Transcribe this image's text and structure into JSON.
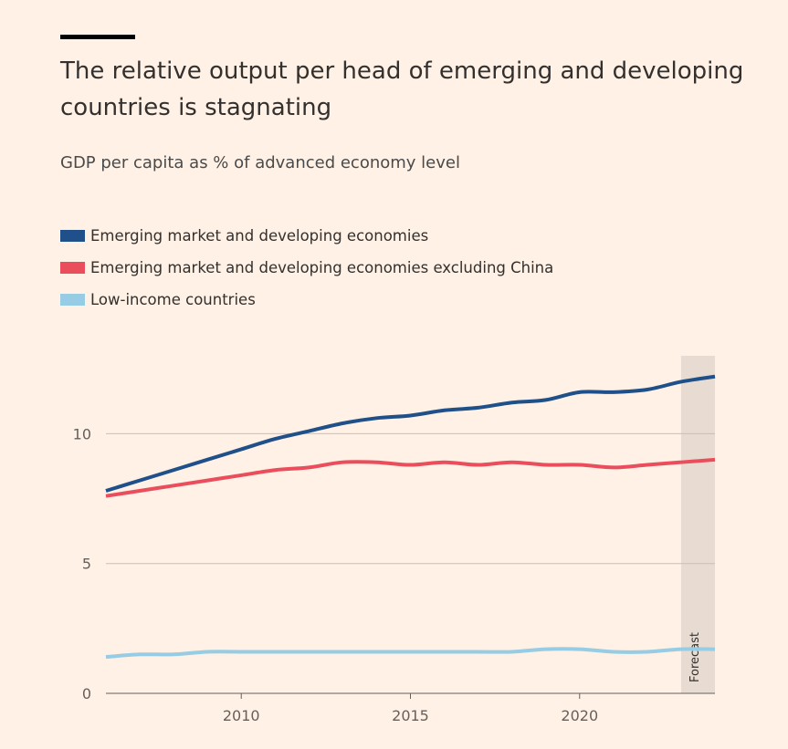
{
  "title": "The relative output per head of emerging and developing countries is stagnating",
  "subtitle": "GDP per capita as % of advanced economy level",
  "colors": {
    "background": "#fff1e5",
    "forecast_band": "#e8dcd2"
  },
  "chart_data": {
    "type": "line",
    "title": "The relative output per head of emerging and developing countries is stagnating",
    "subtitle": "GDP per capita as % of advanced economy level",
    "xlabel": "",
    "ylabel": "",
    "xlim": [
      2006,
      2024
    ],
    "ylim": [
      0,
      13
    ],
    "x_ticks": [
      2010,
      2015,
      2020
    ],
    "y_ticks": [
      0,
      5,
      10
    ],
    "grid": "horizontal",
    "legend_position": "top-left",
    "forecast": {
      "label": "Forecast",
      "from": 2023,
      "to": 2024
    },
    "x": [
      2006,
      2007,
      2008,
      2009,
      2010,
      2011,
      2012,
      2013,
      2014,
      2015,
      2016,
      2017,
      2018,
      2019,
      2020,
      2021,
      2022,
      2023,
      2024
    ],
    "series": [
      {
        "name": "Emerging market and developing economies",
        "color": "#1f5089",
        "values": [
          7.8,
          8.2,
          8.6,
          9.0,
          9.4,
          9.8,
          10.1,
          10.4,
          10.6,
          10.7,
          10.9,
          11.0,
          11.2,
          11.3,
          11.6,
          11.6,
          11.7,
          12.0,
          12.2
        ]
      },
      {
        "name": "Emerging market and developing economies excluding China",
        "color": "#ea4e5c",
        "values": [
          7.6,
          7.8,
          8.0,
          8.2,
          8.4,
          8.6,
          8.7,
          8.9,
          8.9,
          8.8,
          8.9,
          8.8,
          8.9,
          8.8,
          8.8,
          8.7,
          8.8,
          8.9,
          9.0
        ]
      },
      {
        "name": "Low-income countries",
        "color": "#96cce4",
        "values": [
          1.4,
          1.5,
          1.5,
          1.6,
          1.6,
          1.6,
          1.6,
          1.6,
          1.6,
          1.6,
          1.6,
          1.6,
          1.6,
          1.7,
          1.7,
          1.6,
          1.6,
          1.7,
          1.7
        ]
      }
    ]
  }
}
